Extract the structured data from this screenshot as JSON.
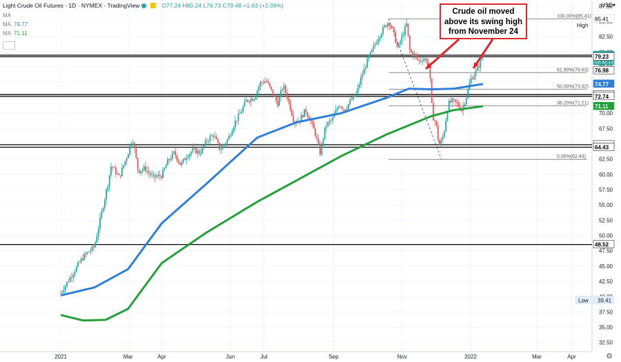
{
  "header": {
    "symbol": "Light Crude Oil Futures · 1D · NYMEX · TradingView",
    "ohlc": "O77.24 H80.24 L76.73 C79.48 +1.63 (+2.09%)",
    "currency": "USD"
  },
  "indicators": {
    "ma_top": "MA",
    "ma_blue_label": "MA",
    "ma_blue_value": "74.77",
    "ma_green_label": "MA",
    "ma_green_value": "71.11"
  },
  "annotation": {
    "line1": "Crude oil moved",
    "line2": "above its swing high",
    "line3": "from November 24"
  },
  "colors": {
    "up": "#26a69a",
    "down": "#ef5350",
    "ma_fast": "#2f7fd8",
    "ma_slow": "#22a03a",
    "callout": "#e0242a",
    "fib": "#8a8a8a"
  },
  "chart_data": {
    "type": "candlestick",
    "title": "Light Crude Oil Futures",
    "xlabel": "",
    "ylabel": "",
    "ylim": [
      31.0,
      88.5
    ],
    "x_ticks": [
      "2021",
      "Mar",
      "Apr",
      "Jun",
      "Jul",
      "Sep",
      "Nov",
      "2022",
      "Mar",
      "Apr"
    ],
    "x_tick_days": [
      0,
      60,
      90,
      151,
      181,
      243,
      304,
      365,
      424,
      455
    ],
    "y_ticks": [
      "32.50",
      "35.00",
      "37.50",
      "40.00",
      "42.50",
      "45.00",
      "47.50",
      "50.00",
      "52.50",
      "55.00",
      "57.50",
      "60.00",
      "62.50",
      "65.00",
      "67.50",
      "70.00",
      "72.50",
      "75.00",
      "77.50",
      "80.00",
      "82.50",
      "85.00",
      "87.50"
    ],
    "y_tick_values": [
      32.5,
      35,
      37.5,
      40,
      42.5,
      45,
      47.5,
      50,
      52.5,
      55,
      57.5,
      60,
      62.5,
      65,
      67.5,
      70,
      72.5,
      75,
      77.5,
      80,
      82.5,
      85,
      87.5
    ],
    "price_path": [
      [
        0,
        40.6
      ],
      [
        8,
        43.0
      ],
      [
        20,
        46.5
      ],
      [
        30,
        48.2
      ],
      [
        35,
        52.5
      ],
      [
        42,
        58.5
      ],
      [
        45,
        61.5
      ],
      [
        52,
        59.5
      ],
      [
        60,
        63.5
      ],
      [
        64,
        66.0
      ],
      [
        69,
        60.5
      ],
      [
        75,
        61.0
      ],
      [
        82,
        59.5
      ],
      [
        90,
        59.8
      ],
      [
        95,
        62.0
      ],
      [
        101,
        63.5
      ],
      [
        107,
        61.5
      ],
      [
        112,
        63.0
      ],
      [
        118,
        64.0
      ],
      [
        124,
        63.5
      ],
      [
        130,
        65.5
      ],
      [
        136,
        66.5
      ],
      [
        142,
        64.0
      ],
      [
        149,
        65.8
      ],
      [
        155,
        68.5
      ],
      [
        160,
        70.0
      ],
      [
        165,
        72.0
      ],
      [
        172,
        72.5
      ],
      [
        178,
        75.0
      ],
      [
        183,
        75.3
      ],
      [
        188,
        73.5
      ],
      [
        193,
        71.5
      ],
      [
        198,
        74.5
      ],
      [
        202,
        72.5
      ],
      [
        208,
        68.5
      ],
      [
        213,
        69.0
      ],
      [
        218,
        70.5
      ],
      [
        223,
        68.5
      ],
      [
        227,
        66.5
      ],
      [
        231,
        63.5
      ],
      [
        236,
        68.0
      ],
      [
        242,
        69.0
      ],
      [
        248,
        71.5
      ],
      [
        253,
        70.5
      ],
      [
        258,
        72.0
      ],
      [
        263,
        73.0
      ],
      [
        268,
        76.0
      ],
      [
        273,
        78.5
      ],
      [
        278,
        80.5
      ],
      [
        283,
        82.5
      ],
      [
        288,
        84.0
      ],
      [
        292,
        85.0
      ],
      [
        296,
        83.5
      ],
      [
        300,
        80.5
      ],
      [
        304,
        82.5
      ],
      [
        308,
        84.5
      ],
      [
        311,
        80.0
      ],
      [
        315,
        79.5
      ],
      [
        319,
        78.5
      ],
      [
        323,
        79.0
      ],
      [
        328,
        78.2
      ],
      [
        331,
        69.5
      ],
      [
        334,
        68.5
      ],
      [
        337,
        64.5
      ],
      [
        341,
        66.5
      ],
      [
        345,
        71.5
      ],
      [
        349,
        72.0
      ],
      [
        353,
        71.5
      ],
      [
        357,
        70.5
      ],
      [
        361,
        72.5
      ],
      [
        365,
        75.5
      ],
      [
        369,
        76.5
      ],
      [
        373,
        78.0
      ],
      [
        376,
        79.48
      ]
    ],
    "high_point": [
      292,
      85.41
    ],
    "low_point": [
      339,
      62.43
    ],
    "ma_fast": {
      "label": "MA",
      "value": 74.77
    },
    "ma_slow": {
      "label": "MA",
      "value": 71.11
    },
    "ma_fast_path": [
      [
        0,
        40.2
      ],
      [
        30,
        41.5
      ],
      [
        60,
        44.5
      ],
      [
        90,
        52.0
      ],
      [
        130,
        58.5
      ],
      [
        175,
        66.0
      ],
      [
        210,
        68.5
      ],
      [
        250,
        70.0
      ],
      [
        290,
        72.5
      ],
      [
        310,
        74.0
      ],
      [
        330,
        73.9
      ],
      [
        350,
        74.0
      ],
      [
        376,
        74.77
      ]
    ],
    "ma_slow_path": [
      [
        0,
        37.0
      ],
      [
        20,
        36.1
      ],
      [
        40,
        36.2
      ],
      [
        60,
        38.0
      ],
      [
        90,
        45.5
      ],
      [
        130,
        50.5
      ],
      [
        175,
        55.5
      ],
      [
        210,
        59.0
      ],
      [
        250,
        63.0
      ],
      [
        290,
        66.5
      ],
      [
        330,
        69.5
      ],
      [
        350,
        70.5
      ],
      [
        376,
        71.11
      ]
    ],
    "horizontal_levels": [
      79.48,
      79.23,
      73.03,
      72.74,
      64.84,
      64.43,
      48.52
    ],
    "fib_levels": [
      {
        "label": "100.00%(85.41)",
        "value": 85.41
      },
      {
        "label": "61.80%(76.63)",
        "value": 76.63
      },
      {
        "label": "50.00%(73.92)",
        "value": 73.92
      },
      {
        "label": "38.20%(71.21)",
        "value": 71.21
      },
      {
        "label": "0.00%(62.43)",
        "value": 62.43
      }
    ],
    "fib_span_days": [
      292,
      376
    ],
    "high_label": {
      "text": "High",
      "value": "85.41"
    },
    "low_label": {
      "text": "Low",
      "value": "39.41"
    },
    "price_labels": [
      {
        "text": "79.48",
        "sub": "02:32:13",
        "value": 79.48,
        "style": "price"
      },
      {
        "text": "79.23",
        "value": 79.23,
        "style": "line"
      },
      {
        "text": "76.98",
        "value": 76.98,
        "style": "line"
      },
      {
        "text": "74.77",
        "value": 74.77,
        "style": "ma_fast"
      },
      {
        "text": "73.03",
        "value": 73.03,
        "style": "line"
      },
      {
        "text": "72.74",
        "value": 72.74,
        "style": "line"
      },
      {
        "text": "71.11",
        "value": 71.11,
        "style": "ma_slow"
      },
      {
        "text": "64.84",
        "value": 64.84,
        "style": "line"
      },
      {
        "text": "64.43",
        "value": 64.43,
        "style": "line"
      },
      {
        "text": "48.52",
        "value": 48.52,
        "style": "line"
      }
    ]
  }
}
